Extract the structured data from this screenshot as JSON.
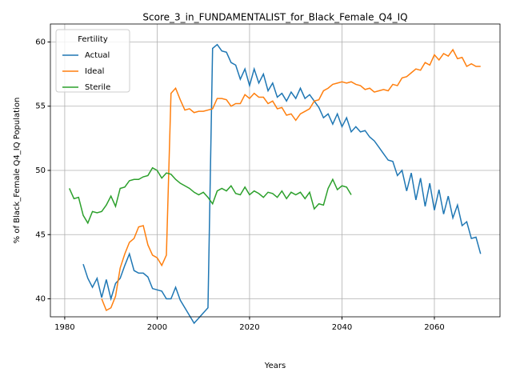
{
  "chart_data": {
    "type": "line",
    "title": "Score_3_in_FUNDAMENTALIST_for_Black_Female_Q4_IQ",
    "xlabel": "Years",
    "ylabel": "% of Black_Female Q4_IQ Population",
    "legend_title": "Fertility",
    "legend": "upper left",
    "grid": true,
    "xlim": [
      1976.9,
      2074.2
    ],
    "ylim": [
      38.6,
      61.4
    ],
    "xticks": [
      1980,
      2000,
      2020,
      2040,
      2060
    ],
    "yticks": [
      40,
      45,
      50,
      55,
      60
    ],
    "x": [
      1981,
      1982,
      1983,
      1984,
      1985,
      1986,
      1987,
      1988,
      1989,
      1990,
      1991,
      1992,
      1993,
      1994,
      1995,
      1996,
      1997,
      1998,
      1999,
      2000,
      2001,
      2002,
      2003,
      2004,
      2005,
      2006,
      2007,
      2008,
      2009,
      2010,
      2011,
      2012,
      2013,
      2014,
      2015,
      2016,
      2017,
      2018,
      2019,
      2020,
      2021,
      2022,
      2023,
      2024,
      2025,
      2026,
      2027,
      2028,
      2029,
      2030,
      2031,
      2032,
      2033,
      2034,
      2035,
      2036,
      2037,
      2038,
      2039,
      2040,
      2041,
      2042,
      2043,
      2044,
      2045,
      2046,
      2047,
      2048,
      2049,
      2050,
      2051,
      2052,
      2053,
      2054,
      2055,
      2056,
      2057,
      2058,
      2059,
      2060,
      2061,
      2062,
      2063,
      2064,
      2065,
      2066,
      2067,
      2068,
      2069,
      2070
    ],
    "series": [
      {
        "name": "Actual",
        "color": "#1f77b4",
        "values": [
          null,
          null,
          null,
          42.7,
          41.6,
          40.9,
          41.6,
          40.1,
          41.5,
          40.0,
          41.2,
          41.6,
          42.6,
          43.5,
          42.2,
          42.0,
          42.0,
          41.7,
          40.8,
          40.7,
          40.6,
          40.0,
          40.0,
          40.9,
          39.9,
          39.3,
          38.7,
          38.1,
          38.5,
          38.9,
          39.3,
          59.5,
          59.8,
          59.3,
          59.2,
          58.4,
          58.2,
          57.1,
          57.9,
          56.6,
          57.9,
          56.8,
          57.5,
          56.2,
          56.8,
          55.7,
          56.0,
          55.4,
          56.1,
          55.6,
          56.4,
          55.6,
          55.9,
          55.4,
          54.9,
          54.1,
          54.4,
          53.6,
          54.4,
          53.4,
          54.1,
          53.0,
          53.4,
          53.0,
          53.1,
          52.6,
          52.3,
          51.8,
          51.3,
          50.8,
          50.7,
          49.6,
          50.0,
          48.4,
          49.8,
          47.7,
          49.4,
          47.2,
          49.0,
          46.9,
          48.5,
          46.6,
          48.0,
          46.3,
          47.3,
          45.7,
          46.0,
          44.7,
          44.8,
          43.5
        ]
      },
      {
        "name": "Ideal",
        "color": "#ff7f0e",
        "values": [
          null,
          null,
          null,
          null,
          null,
          null,
          null,
          40.0,
          39.1,
          39.3,
          40.2,
          42.4,
          43.5,
          44.4,
          44.7,
          45.6,
          45.7,
          44.2,
          43.4,
          43.2,
          42.6,
          43.4,
          56.0,
          56.4,
          55.5,
          54.7,
          54.8,
          54.5,
          54.6,
          54.6,
          54.7,
          54.8,
          55.6,
          55.6,
          55.5,
          55.0,
          55.2,
          55.2,
          55.9,
          55.6,
          56.0,
          55.7,
          55.7,
          55.2,
          55.4,
          54.8,
          54.9,
          54.3,
          54.4,
          53.9,
          54.4,
          54.6,
          54.8,
          55.4,
          55.5,
          56.2,
          56.4,
          56.7,
          56.8,
          56.9,
          56.8,
          56.9,
          56.7,
          56.6,
          56.3,
          56.4,
          56.1,
          56.2,
          56.3,
          56.2,
          56.7,
          56.6,
          57.2,
          57.3,
          57.6,
          57.9,
          57.8,
          58.4,
          58.2,
          59.0,
          58.6,
          59.1,
          58.9,
          59.4,
          58.7,
          58.8,
          58.1,
          58.3,
          58.1,
          58.1
        ]
      },
      {
        "name": "Sterile",
        "color": "#2ca02c",
        "values": [
          48.6,
          47.8,
          47.9,
          46.5,
          45.9,
          46.8,
          46.7,
          46.8,
          47.3,
          48.0,
          47.2,
          48.6,
          48.7,
          49.2,
          49.3,
          49.3,
          49.5,
          49.6,
          50.2,
          50.0,
          49.4,
          49.8,
          49.7,
          49.3,
          49.0,
          48.8,
          48.6,
          48.3,
          48.1,
          48.3,
          47.9,
          47.4,
          48.4,
          48.6,
          48.4,
          48.8,
          48.2,
          48.1,
          48.7,
          48.1,
          48.4,
          48.2,
          47.9,
          48.3,
          48.2,
          47.9,
          48.4,
          47.8,
          48.3,
          48.1,
          48.3,
          47.8,
          48.3,
          47.0,
          47.4,
          47.3,
          48.6,
          49.3,
          48.5,
          48.8,
          48.7,
          48.1,
          null,
          null,
          null,
          null,
          null,
          null,
          null,
          null,
          null,
          null,
          null,
          null,
          null,
          null,
          null,
          null,
          null,
          null,
          null,
          null,
          null,
          null,
          null,
          null,
          null,
          null,
          null,
          null
        ]
      }
    ]
  }
}
